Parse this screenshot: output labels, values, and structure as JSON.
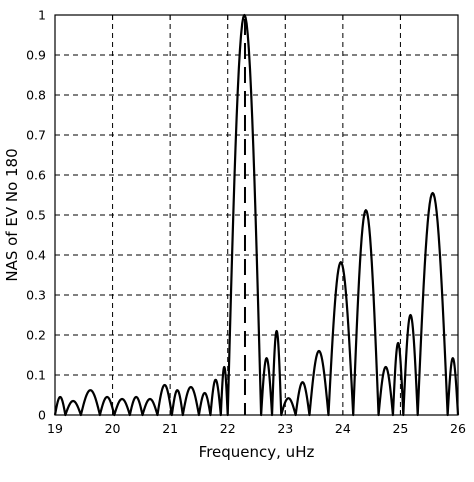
{
  "chart_data": {
    "type": "line",
    "xlabel": "Frequency, uHz",
    "ylabel": "NAS of EV No 180",
    "xlim": [
      19,
      26
    ],
    "ylim": [
      0,
      1
    ],
    "x_ticks": [
      19,
      20,
      21,
      22,
      23,
      24,
      25,
      26
    ],
    "y_ticks": [
      0,
      0.1,
      0.2,
      0.3,
      0.4,
      0.5,
      0.6,
      0.7,
      0.8,
      0.9,
      1
    ],
    "x_tick_labels": [
      "19",
      "20",
      "21",
      "22",
      "23",
      "24",
      "25",
      "26"
    ],
    "y_tick_labels": [
      "0",
      "0.1",
      "0.2",
      "0.3",
      "0.4",
      "0.5",
      "0.6",
      "0.7",
      "0.8",
      "0.9",
      "1"
    ],
    "grid": true,
    "grid_style": "dashed",
    "line_color": "#000000",
    "series": [
      {
        "lobes": [
          [
            19.0,
            19.18,
            0.045
          ],
          [
            19.18,
            19.45,
            0.035
          ],
          [
            19.45,
            19.78,
            0.062
          ],
          [
            19.78,
            20.03,
            0.045
          ],
          [
            20.03,
            20.3,
            0.04
          ],
          [
            20.3,
            20.52,
            0.045
          ],
          [
            20.52,
            20.78,
            0.04
          ],
          [
            20.78,
            21.03,
            0.075
          ],
          [
            21.03,
            21.22,
            0.062
          ],
          [
            21.22,
            21.5,
            0.07
          ],
          [
            21.5,
            21.7,
            0.055
          ],
          [
            21.7,
            21.88,
            0.088
          ],
          [
            21.88,
            22.0,
            0.12
          ],
          [
            22.0,
            22.58,
            1.0
          ],
          [
            22.58,
            22.77,
            0.142
          ],
          [
            22.77,
            22.93,
            0.21
          ],
          [
            22.93,
            23.18,
            0.042
          ],
          [
            23.18,
            23.42,
            0.082
          ],
          [
            23.42,
            23.75,
            0.16
          ],
          [
            23.75,
            24.18,
            0.382
          ],
          [
            24.18,
            24.62,
            0.512
          ],
          [
            24.62,
            24.87,
            0.12
          ],
          [
            24.87,
            25.05,
            0.18
          ],
          [
            25.05,
            25.3,
            0.25
          ],
          [
            25.3,
            25.82,
            0.555
          ],
          [
            25.82,
            26.0,
            0.142
          ]
        ]
      }
    ],
    "reference_line": {
      "x": 22.3,
      "style": "dashed"
    }
  }
}
